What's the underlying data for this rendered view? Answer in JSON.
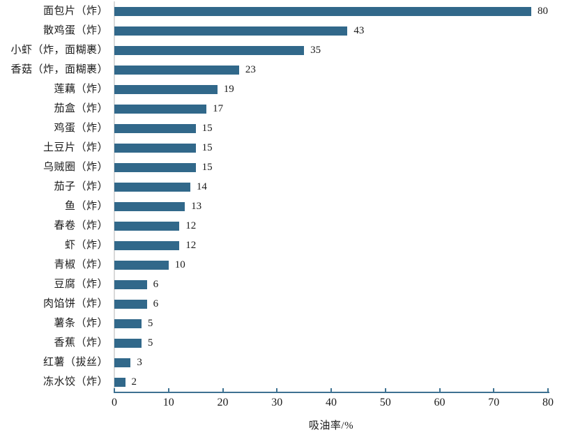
{
  "chart_data": {
    "type": "bar",
    "orientation": "horizontal",
    "categories": [
      "面包片（炸）",
      "散鸡蛋（炸）",
      "小虾（炸，面糊裹）",
      "香菇（炸，面糊裹）",
      "莲藕（炸）",
      "茄盒（炸）",
      "鸡蛋（炸）",
      "土豆片（炸）",
      "乌贼圈（炸）",
      "茄子（炸）",
      "鱼（炸）",
      "春卷（炸）",
      "虾（炸）",
      "青椒（炸）",
      "豆腐（炸）",
      "肉馅饼（炸）",
      "薯条（炸）",
      "香蕉（炸）",
      "红薯（拔丝）",
      "冻水饺（炸）"
    ],
    "values": [
      80,
      43,
      35,
      23,
      19,
      17,
      15,
      15,
      15,
      14,
      13,
      12,
      12,
      10,
      6,
      6,
      5,
      5,
      3,
      2
    ],
    "title": "",
    "xlabel": "吸油率/%",
    "ylabel": "",
    "xlim": [
      0,
      80
    ],
    "xticks": [
      0,
      10,
      20,
      30,
      40,
      50,
      60,
      70,
      80
    ],
    "grid": "off",
    "legend": "none",
    "data_labels": "shown at bar ends",
    "bar_color": "#31688A",
    "axis_color": "#3D7191",
    "y_axis_line_color": "#D9D9D9"
  }
}
